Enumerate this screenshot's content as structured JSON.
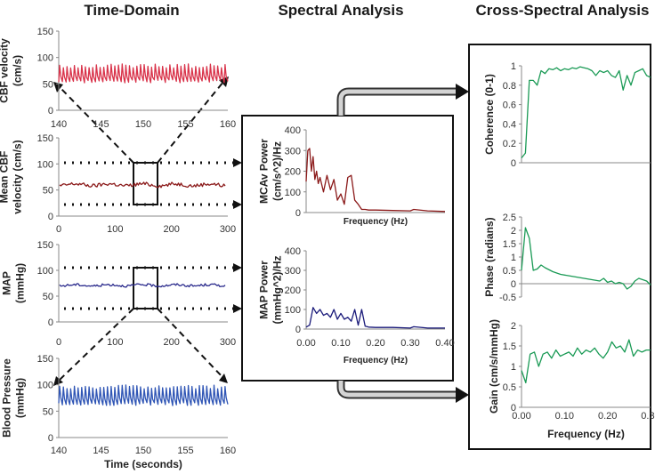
{
  "headings": {
    "time_domain": "Time-Domain",
    "spectral": "Spectral Analysis",
    "cross_spectral": "Cross-Spectral Analysis"
  },
  "colors": {
    "cbf": "#d9334a",
    "mean_cbf": "#8b1a1a",
    "map": "#2a2a8c",
    "bp": "#2f55b5",
    "mcav_power": "#8b1a1a",
    "map_power": "#1a1a7a",
    "cross": "#1a9a55"
  },
  "chart_data": [
    {
      "id": "cbf",
      "type": "line",
      "ylabel": [
        "CBF velocity",
        "(cm/s)"
      ],
      "xlim": [
        140,
        160
      ],
      "ylim": [
        0,
        150
      ],
      "xticks": [
        "140",
        "145",
        "150",
        "155",
        "160"
      ],
      "yticks": [
        "0",
        "50",
        "100",
        "150"
      ],
      "series": [
        {
          "color": "#d9334a",
          "y_min": 52,
          "y_max": 88,
          "beats": 46
        }
      ]
    },
    {
      "id": "mean_cbf",
      "type": "line",
      "ylabel": [
        "Mean CBF",
        "velocity (cm/s)"
      ],
      "xlim": [
        0,
        300
      ],
      "ylim": [
        0,
        150
      ],
      "xticks": [
        "0",
        "100",
        "200",
        "300"
      ],
      "yticks": [
        "0",
        "50",
        "100",
        "150"
      ],
      "series": [
        {
          "color": "#8b1a1a",
          "mean": 60,
          "spread": 6
        }
      ]
    },
    {
      "id": "map",
      "type": "line",
      "ylabel": [
        "MAP",
        "(mmHg)"
      ],
      "xlim": [
        0,
        300
      ],
      "ylim": [
        0,
        150
      ],
      "xticks": [
        "0",
        "100",
        "200",
        "300"
      ],
      "yticks": [
        "0",
        "50",
        "100",
        "150"
      ],
      "series": [
        {
          "color": "#2a2a8c",
          "mean": 71,
          "spread": 4
        }
      ]
    },
    {
      "id": "bp",
      "type": "line",
      "ylabel": [
        "Blood Pressure",
        "(mmHg)"
      ],
      "xlabel": "Time (seconds)",
      "xlim": [
        140,
        160
      ],
      "ylim": [
        0,
        150
      ],
      "xticks": [
        "140",
        "145",
        "150",
        "155",
        "160"
      ],
      "yticks": [
        "0",
        "50",
        "100",
        "150"
      ],
      "series": [
        {
          "color": "#2f55b5",
          "y_min": 60,
          "y_max": 100,
          "beats": 46
        }
      ]
    },
    {
      "id": "mcav_power",
      "type": "line",
      "ylabel": [
        "MCAv Power",
        "(cm/s^2)/Hz"
      ],
      "xlabel": "Frequency (Hz)",
      "xlim": [
        0,
        0.4
      ],
      "ylim": [
        0,
        400
      ],
      "yticks": [
        "0",
        "100",
        "200",
        "300",
        "400"
      ],
      "series": [
        {
          "color": "#8b1a1a",
          "x": [
            0.0,
            0.005,
            0.01,
            0.015,
            0.02,
            0.025,
            0.03,
            0.035,
            0.04,
            0.05,
            0.06,
            0.07,
            0.08,
            0.09,
            0.1,
            0.11,
            0.12,
            0.13,
            0.14,
            0.15,
            0.16,
            0.17,
            0.18,
            0.2,
            0.25,
            0.3,
            0.31,
            0.35,
            0.4
          ],
          "y": [
            150,
            300,
            310,
            200,
            270,
            160,
            200,
            140,
            170,
            100,
            180,
            110,
            160,
            60,
            90,
            40,
            170,
            180,
            60,
            40,
            15,
            15,
            12,
            12,
            10,
            8,
            15,
            8,
            5
          ]
        }
      ]
    },
    {
      "id": "map_power",
      "type": "line",
      "ylabel": [
        "MAP Power",
        "(mmHg^2)/Hz"
      ],
      "xlabel": "Frequency (Hz)",
      "xlim": [
        0,
        0.4
      ],
      "ylim": [
        0,
        400
      ],
      "xticks": [
        "0.00",
        "0.10",
        "0.20",
        "0.30",
        "0.40"
      ],
      "yticks": [
        "0",
        "100",
        "200",
        "300",
        "400"
      ],
      "series": [
        {
          "color": "#1a1a7a",
          "x": [
            0.0,
            0.01,
            0.02,
            0.03,
            0.04,
            0.05,
            0.06,
            0.07,
            0.08,
            0.09,
            0.1,
            0.11,
            0.12,
            0.13,
            0.14,
            0.15,
            0.16,
            0.17,
            0.18,
            0.2,
            0.25,
            0.3,
            0.31,
            0.35,
            0.4
          ],
          "y": [
            10,
            20,
            110,
            80,
            100,
            70,
            80,
            60,
            100,
            50,
            80,
            50,
            60,
            40,
            100,
            20,
            100,
            15,
            10,
            8,
            8,
            5,
            12,
            5,
            5
          ]
        }
      ]
    },
    {
      "id": "coherence",
      "type": "line",
      "ylabel": [
        "Coherence (0-1)"
      ],
      "xlim": [
        0,
        0.33
      ],
      "ylim": [
        0,
        1
      ],
      "yticks": [
        "0",
        "0.2",
        "0.4",
        "0.6",
        "0.8",
        "1"
      ],
      "series": [
        {
          "color": "#1a9a55",
          "x": [
            0.0,
            0.01,
            0.02,
            0.03,
            0.04,
            0.05,
            0.06,
            0.07,
            0.08,
            0.09,
            0.1,
            0.11,
            0.12,
            0.13,
            0.14,
            0.15,
            0.16,
            0.17,
            0.18,
            0.19,
            0.2,
            0.21,
            0.22,
            0.23,
            0.24,
            0.25,
            0.26,
            0.27,
            0.28,
            0.29,
            0.3,
            0.31,
            0.32,
            0.33
          ],
          "y": [
            0.05,
            0.1,
            0.85,
            0.85,
            0.8,
            0.95,
            0.92,
            0.97,
            0.96,
            0.98,
            0.95,
            0.97,
            0.96,
            0.98,
            0.97,
            0.99,
            0.98,
            0.97,
            0.95,
            0.9,
            0.95,
            0.93,
            0.95,
            0.9,
            0.88,
            0.95,
            0.75,
            0.9,
            0.8,
            0.93,
            0.95,
            0.97,
            0.9,
            0.88
          ]
        }
      ]
    },
    {
      "id": "phase",
      "type": "line",
      "ylabel": [
        "Phase (radians)"
      ],
      "xlim": [
        0,
        0.33
      ],
      "ylim": [
        -0.5,
        2.5
      ],
      "yticks": [
        "-0.5",
        "0",
        "0.5",
        "1",
        "1.5",
        "2",
        "2.5"
      ],
      "series": [
        {
          "color": "#1a9a55",
          "x": [
            0.0,
            0.01,
            0.02,
            0.03,
            0.04,
            0.05,
            0.06,
            0.08,
            0.1,
            0.12,
            0.14,
            0.16,
            0.18,
            0.2,
            0.21,
            0.22,
            0.23,
            0.24,
            0.25,
            0.26,
            0.27,
            0.28,
            0.29,
            0.3,
            0.31,
            0.32,
            0.33
          ],
          "y": [
            0.5,
            2.1,
            1.7,
            0.5,
            0.55,
            0.7,
            0.6,
            0.45,
            0.35,
            0.3,
            0.25,
            0.2,
            0.15,
            0.1,
            0.2,
            0.05,
            0.1,
            0.0,
            0.05,
            0.0,
            -0.2,
            -0.1,
            0.1,
            0.2,
            0.15,
            0.1,
            -0.05
          ]
        }
      ]
    },
    {
      "id": "gain",
      "type": "line",
      "ylabel": [
        "Gain (cm/s/mmHg)"
      ],
      "xlabel": "Frequency (Hz)",
      "xlim": [
        0,
        0.3
      ],
      "ylim": [
        0,
        2
      ],
      "xticks": [
        "0.00",
        "0.10",
        "0.20",
        "0.30"
      ],
      "yticks": [
        "0",
        "0.5",
        "1",
        "1.5",
        "2"
      ],
      "series": [
        {
          "color": "#1a9a55",
          "x": [
            0.0,
            0.01,
            0.02,
            0.03,
            0.04,
            0.05,
            0.06,
            0.07,
            0.08,
            0.09,
            0.1,
            0.11,
            0.12,
            0.13,
            0.14,
            0.15,
            0.16,
            0.17,
            0.18,
            0.19,
            0.2,
            0.21,
            0.22,
            0.23,
            0.24,
            0.25,
            0.26,
            0.27,
            0.28,
            0.29,
            0.3
          ],
          "y": [
            0.9,
            0.6,
            1.3,
            1.35,
            1.0,
            1.3,
            1.35,
            1.2,
            1.4,
            1.25,
            1.3,
            1.35,
            1.25,
            1.45,
            1.3,
            1.4,
            1.35,
            1.45,
            1.3,
            1.2,
            1.35,
            1.6,
            1.45,
            1.5,
            1.35,
            1.65,
            1.25,
            1.4,
            1.35,
            1.4,
            1.4
          ]
        }
      ]
    }
  ]
}
